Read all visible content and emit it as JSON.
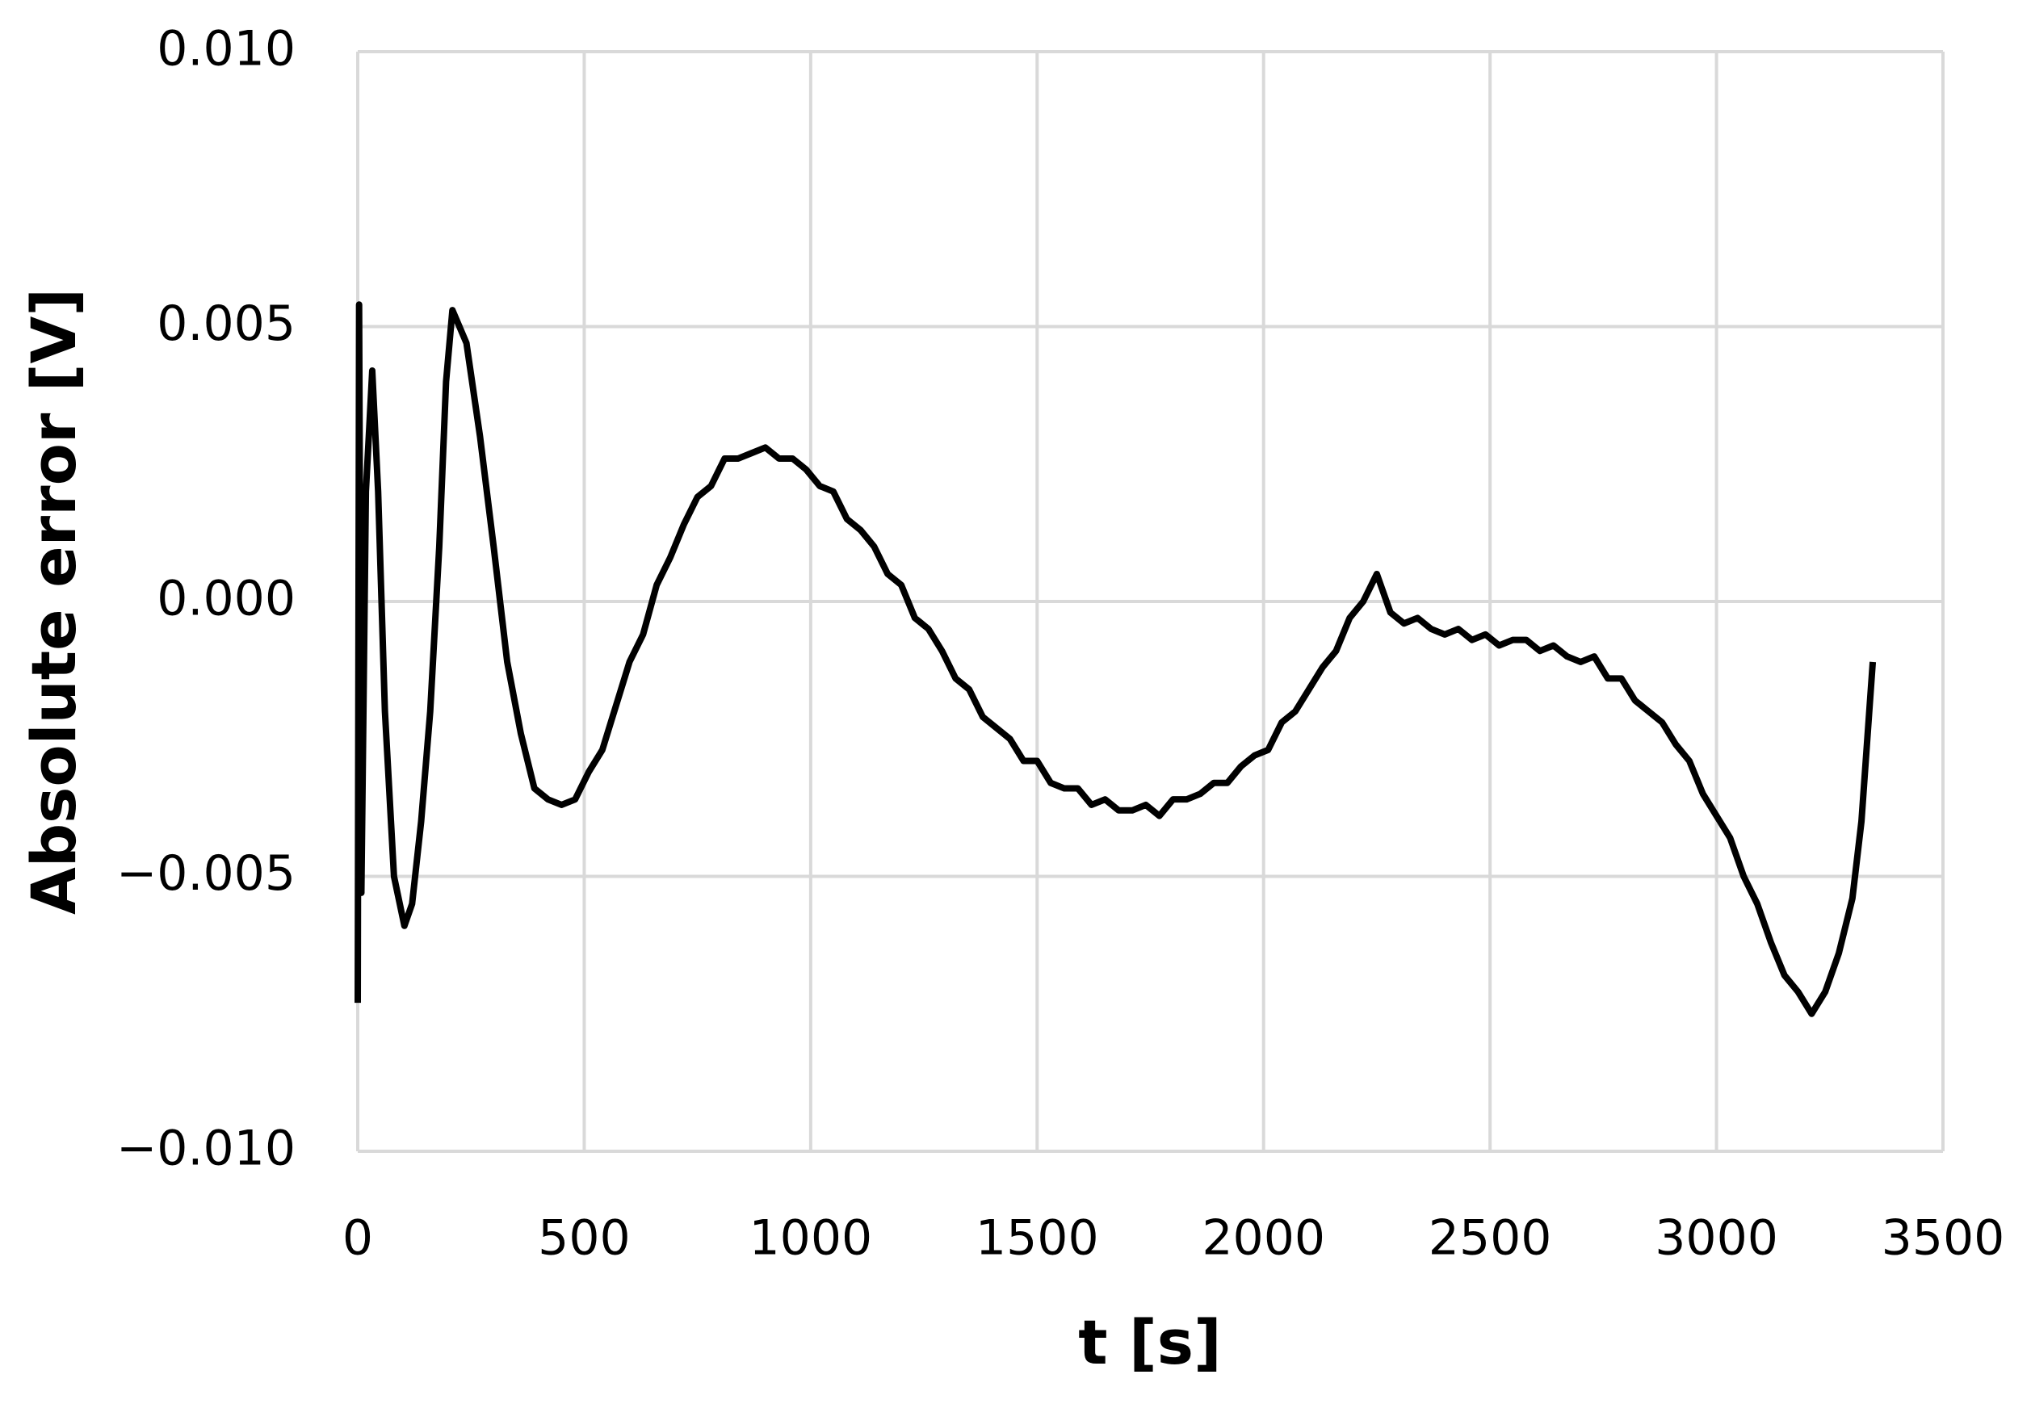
{
  "chart_data": {
    "type": "line",
    "xlabel": "t [s]",
    "ylabel": "Absolute error [V]",
    "xlim": [
      0,
      3500
    ],
    "xticks": [
      0,
      500,
      1000,
      1500,
      2000,
      2500,
      3000,
      3500
    ],
    "ylim": [
      -0.01,
      0.01
    ],
    "yticks": [
      {
        "value": -0.01,
        "label": "−0.010"
      },
      {
        "value": -0.005,
        "label": "−0.005"
      },
      {
        "value": 0,
        "label": "0.000"
      },
      {
        "value": 0.005,
        "label": "0.005"
      },
      {
        "value": 0.01,
        "label": "0.010"
      }
    ],
    "grid": true,
    "x": [
      0,
      3,
      8,
      18,
      32,
      45,
      60,
      80,
      103,
      120,
      140,
      160,
      180,
      195,
      209,
      240,
      270,
      300,
      330,
      360,
      390,
      420,
      450,
      480,
      510,
      540,
      570,
      600,
      630,
      660,
      690,
      720,
      750,
      780,
      810,
      840,
      870,
      900,
      930,
      960,
      990,
      1020,
      1050,
      1080,
      1110,
      1140,
      1170,
      1200,
      1230,
      1260,
      1290,
      1320,
      1350,
      1380,
      1410,
      1440,
      1470,
      1500,
      1530,
      1560,
      1590,
      1620,
      1650,
      1680,
      1710,
      1740,
      1770,
      1800,
      1830,
      1860,
      1890,
      1920,
      1950,
      1980,
      2010,
      2040,
      2070,
      2100,
      2130,
      2160,
      2190,
      2220,
      2250,
      2280,
      2310,
      2340,
      2370,
      2400,
      2430,
      2460,
      2490,
      2520,
      2550,
      2580,
      2610,
      2640,
      2670,
      2700,
      2730,
      2760,
      2790,
      2820,
      2850,
      2880,
      2910,
      2940,
      2970,
      3000,
      3030,
      3060,
      3090,
      3120,
      3150,
      3180,
      3210,
      3240,
      3270,
      3300,
      3320,
      3345
    ],
    "series": [
      {
        "color": "#000000",
        "values": [
          -0.0073,
          0.0054,
          -0.0053,
          0.002,
          0.0042,
          0.002,
          -0.002,
          -0.005,
          -0.0059,
          -0.0055,
          -0.004,
          -0.002,
          0.001,
          0.004,
          0.0053,
          0.0047,
          0.003,
          0.001,
          -0.0011,
          -0.0024,
          -0.0034,
          -0.0036,
          -0.0037,
          -0.0036,
          -0.0031,
          -0.0027,
          -0.0019,
          -0.0011,
          -0.0006,
          0.0003,
          0.0008,
          0.0014,
          0.0019,
          0.0021,
          0.0026,
          0.0026,
          0.0027,
          0.0028,
          0.0026,
          0.0026,
          0.0024,
          0.0021,
          0.002,
          0.0015,
          0.0013,
          0.001,
          0.0005,
          0.0003,
          -0.0003,
          -0.0005,
          -0.0009,
          -0.0014,
          -0.0016,
          -0.0021,
          -0.0023,
          -0.0025,
          -0.0029,
          -0.0029,
          -0.0033,
          -0.0034,
          -0.0034,
          -0.0037,
          -0.0036,
          -0.0038,
          -0.0038,
          -0.0037,
          -0.0039,
          -0.0036,
          -0.0036,
          -0.0035,
          -0.0033,
          -0.0033,
          -0.003,
          -0.0028,
          -0.0027,
          -0.0022,
          -0.002,
          -0.0016,
          -0.0012,
          -0.0009,
          -0.0003,
          0,
          0.0005,
          -0.0002,
          -0.0004,
          -0.0003,
          -0.0005,
          -0.0006,
          -0.0005,
          -0.0007,
          -0.0006,
          -0.0008,
          -0.0007,
          -0.0007,
          -0.0009,
          -0.0008,
          -0.001,
          -0.0011,
          -0.001,
          -0.0014,
          -0.0014,
          -0.0018,
          -0.002,
          -0.0022,
          -0.0026,
          -0.0029,
          -0.0035,
          -0.0039,
          -0.0043,
          -0.005,
          -0.0055,
          -0.0062,
          -0.0068,
          -0.0071,
          -0.0075,
          -0.0071,
          -0.0064,
          -0.0054,
          -0.004,
          -0.0011
        ]
      }
    ]
  }
}
